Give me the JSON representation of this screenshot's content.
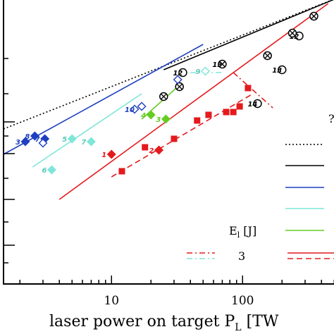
{
  "chart_data": {
    "type": "scatter",
    "xscale": "log",
    "yscale": "log",
    "xlim": [
      1.5,
      700
    ],
    "xticks": [
      10,
      100
    ],
    "tick_labels": [
      "10",
      "100"
    ],
    "xlabel": "laser power on target P",
    "xlabel_sub": "L",
    "xlabel_tail": " [TW",
    "legend": {
      "energy_label": "E",
      "energy_sub": "l",
      "energy_unit": " [J]",
      "energy_value": "3",
      "partial_glyph": "?",
      "colors": [
        "#000000",
        "#000000",
        "#1f3fbf",
        "#7fe6d9",
        "#66cc22",
        "#e41a1c"
      ],
      "dashes": [
        "dot",
        "solid",
        "solid",
        "solid",
        "solid",
        "solid"
      ]
    },
    "series": [
      {
        "color": "#000000",
        "marker": "circle",
        "points": [
          [
            35,
            150
          ],
          [
            130,
            128
          ],
          [
            200,
            152
          ],
          [
            270,
            176
          ],
          [
            500,
            206
          ]
        ],
        "labels": [
          "12",
          "14",
          "13",
          "12",
          "11"
        ]
      },
      {
        "color": "#000000",
        "marker": "circle-cross",
        "points": [
          [
            25,
            133
          ],
          [
            33,
            140
          ],
          [
            70,
            156
          ],
          [
            155,
            162
          ],
          [
            240,
            178
          ],
          [
            350,
            190
          ]
        ],
        "labels": [
          "",
          "",
          "13",
          "",
          "",
          ""
        ]
      },
      {
        "color": "#1f3fbf",
        "marker": "diamond-filled",
        "points": [
          [
            2.2,
            101
          ],
          [
            2.6,
            105
          ],
          [
            3.1,
            103
          ]
        ],
        "labels": [
          "3",
          "8",
          "7"
        ]
      },
      {
        "color": "#1f3fbf",
        "marker": "diamond-open",
        "points": [
          [
            3.0,
            100
          ],
          [
            15,
            124
          ],
          [
            17,
            126
          ],
          [
            32,
            145
          ]
        ],
        "labels": [
          "",
          "10",
          "",
          ""
        ]
      },
      {
        "color": "#7fe6d9",
        "marker": "diamond-filled",
        "points": [
          [
            3.5,
            81
          ],
          [
            5.0,
            103
          ],
          [
            7.0,
            101
          ]
        ],
        "labels": [
          "6",
          "5",
          "7"
        ]
      },
      {
        "color": "#7fe6d9",
        "marker": "diamond-open",
        "points": [
          [
            52,
            151
          ]
        ],
        "labels": [
          "9"
        ]
      },
      {
        "color": "#66cc22",
        "marker": "diamond-filled",
        "points": [
          [
            20,
            120
          ],
          [
            26,
            117
          ]
        ],
        "labels": [
          "4",
          "3"
        ]
      },
      {
        "color": "#e41a1c",
        "marker": "diamond-filled",
        "points": [
          [
            10,
            92
          ],
          [
            23,
            95
          ]
        ],
        "labels": [
          "1",
          "2"
        ]
      },
      {
        "color": "#e41a1c",
        "marker": "square",
        "points": [
          [
            12,
            80
          ],
          [
            18,
            97
          ],
          [
            30,
            103
          ],
          [
            45,
            116
          ],
          [
            55,
            120
          ],
          [
            75,
            122
          ],
          [
            85,
            122
          ],
          [
            95,
            126
          ],
          [
            110,
            139
          ]
        ],
        "labels": [
          "",
          "",
          "",
          "",
          "",
          "",
          "",
          "",
          ""
        ]
      }
    ],
    "lines": [
      {
        "color": "#000000",
        "dash": "dot",
        "x": [
          1.5,
          600
        ],
        "y": [
          110,
          205
        ]
      },
      {
        "color": "#000000",
        "dash": "solid",
        "x": [
          25,
          600
        ],
        "y": [
          152,
          205
        ]
      },
      {
        "color": "#1f3fbf",
        "dash": "solid",
        "x": [
          1.5,
          50
        ],
        "y": [
          92,
          170
        ]
      },
      {
        "color": "#7fe6d9",
        "dash": "solid",
        "x": [
          2.5,
          17
        ],
        "y": [
          83,
          135
        ]
      },
      {
        "color": "#66cc22",
        "dash": "solid",
        "x": [
          17,
          32
        ],
        "y": [
          117,
          140
        ]
      },
      {
        "color": "#e41a1c",
        "dash": "solid",
        "x": [
          4,
          450
        ],
        "y": [
          60,
          199
        ]
      },
      {
        "color": "#e41a1c",
        "dash": "dash",
        "x": [
          10,
          120
        ],
        "y": [
          76,
          135
        ]
      },
      {
        "color": "#e41a1c",
        "dash": "dashdot",
        "x": [
          85,
          170
        ],
        "y": [
          150,
          125
        ]
      },
      {
        "color": "#7fe6d9",
        "dash": "dashdot",
        "x": [
          40,
          70
        ],
        "y": [
          150,
          150
        ]
      }
    ]
  }
}
